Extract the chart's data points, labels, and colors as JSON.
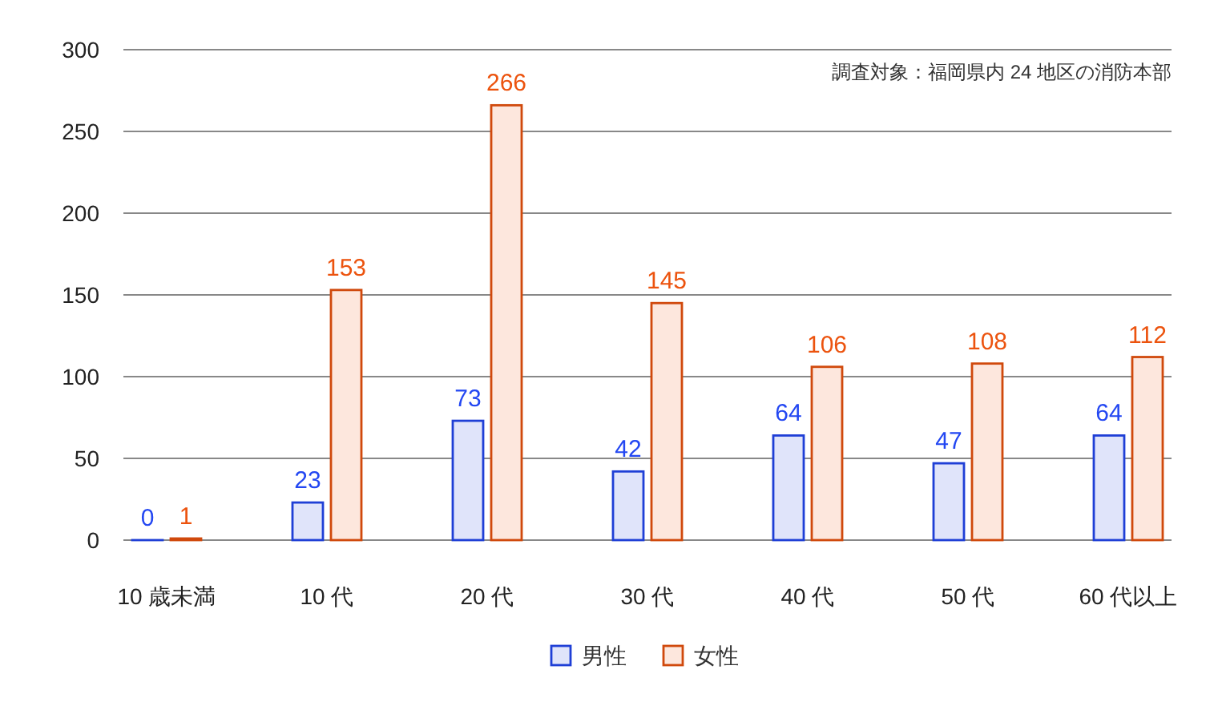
{
  "chart_data": {
    "type": "bar",
    "categories": [
      "10 歳未満",
      "10 代",
      "20 代",
      "30 代",
      "40 代",
      "50 代",
      "60 代以上"
    ],
    "series": [
      {
        "name": "男性",
        "color": "#1f3fd6",
        "values": [
          0,
          23,
          73,
          42,
          64,
          47,
          64
        ]
      },
      {
        "name": "女性",
        "color": "#d0490c",
        "values": [
          1,
          153,
          266,
          145,
          106,
          108,
          112
        ]
      }
    ],
    "ylim": [
      0,
      300
    ],
    "yticks": [
      0,
      50,
      100,
      150,
      200,
      250,
      300
    ],
    "grid": "y",
    "legend": "bottom",
    "data_labels": true,
    "annotations": [
      "調査対象：福岡県内 24 地区の消防本部"
    ]
  }
}
